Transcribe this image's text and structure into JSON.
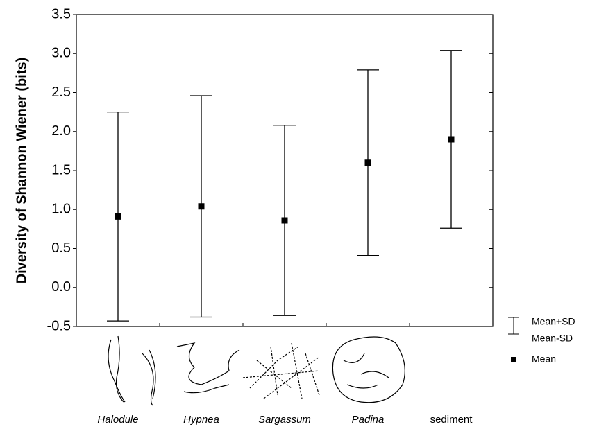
{
  "chart_data": {
    "type": "errorbar",
    "ylabel": "Diversity of Shannon Wiener (bits)",
    "categories": [
      "Halodule",
      "Hypnea",
      "Sargassum",
      "Padina",
      "sediment"
    ],
    "series": [
      {
        "name": "Mean",
        "color": "#000000",
        "values": [
          0.91,
          1.04,
          0.86,
          1.6,
          1.9
        ],
        "errors": [
          1.34,
          1.42,
          1.22,
          1.19,
          1.14
        ]
      }
    ],
    "error_legend": [
      "Mean+SD",
      "Mean-SD"
    ],
    "ylim": [
      -0.5,
      3.5
    ],
    "yticks": [
      -0.5,
      {
        "value": 0,
        "label": "0.0"
      },
      0.5,
      {
        "value": 1,
        "label": "1.0"
      },
      1.5,
      {
        "value": 2,
        "label": "2.0"
      },
      2.5,
      {
        "value": 3,
        "label": "3.0"
      },
      3.5
    ],
    "grid": false
  }
}
